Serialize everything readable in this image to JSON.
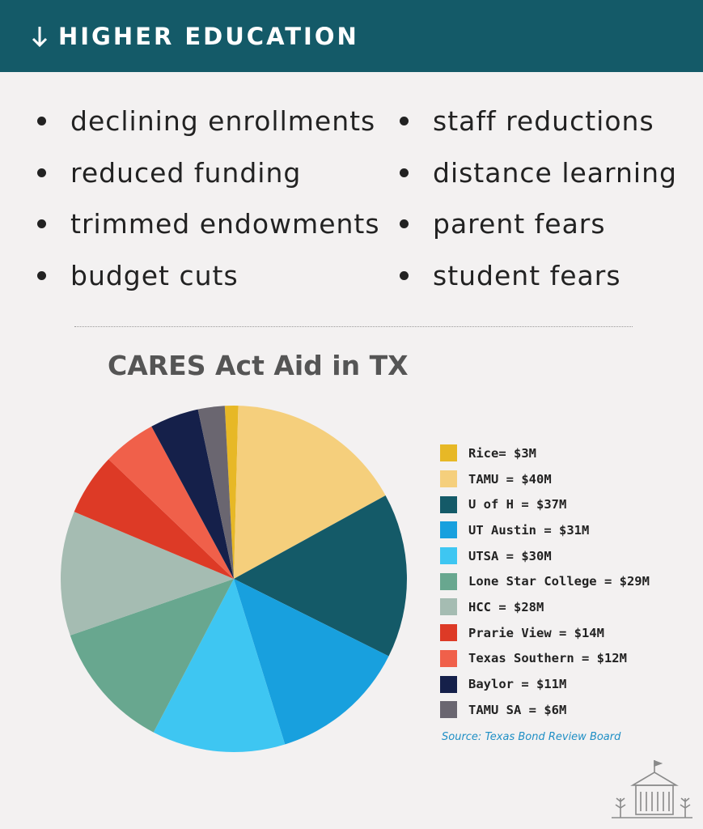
{
  "header": {
    "title": "HIGHER EDUCATION",
    "icon": "arrow-down-icon"
  },
  "bullets": {
    "left": [
      "declining enrollments",
      "reduced funding",
      "trimmed endowments",
      "budget cuts"
    ],
    "right": [
      "staff reductions",
      "distance learning",
      "parent fears",
      "student fears"
    ]
  },
  "chart_data": {
    "type": "pie",
    "title": "CARES Act Aid in TX",
    "start_angle_deg": -3,
    "slices": [
      {
        "label": "Rice= $3M",
        "value": 3,
        "color": "#e7b826"
      },
      {
        "label": "TAMU = $40M",
        "value": 40,
        "color": "#f5cf7c"
      },
      {
        "label": "U of H = $37M",
        "value": 37,
        "color": "#145a68"
      },
      {
        "label": "UT Austin = $31M",
        "value": 31,
        "color": "#18a0de"
      },
      {
        "label": "UTSA = $30M",
        "value": 30,
        "color": "#3ec6f2"
      },
      {
        "label": "Lone Star College = $29M",
        "value": 29,
        "color": "#68a78f"
      },
      {
        "label": "HCC = $28M",
        "value": 28,
        "color": "#a5bcb2"
      },
      {
        "label": "Prarie View = $14M",
        "value": 14,
        "color": "#dd3a26"
      },
      {
        "label": "Texas Southern = $12M",
        "value": 12,
        "color": "#f0604a"
      },
      {
        "label": "Baylor = $11M",
        "value": 11,
        "color": "#15204a"
      },
      {
        "label": "TAMU SA = $6M",
        "value": 6,
        "color": "#6a6670"
      }
    ],
    "legend_position": "right"
  },
  "source": "Source: Texas Bond Review Board",
  "logo": {
    "icon": "building-icon"
  }
}
